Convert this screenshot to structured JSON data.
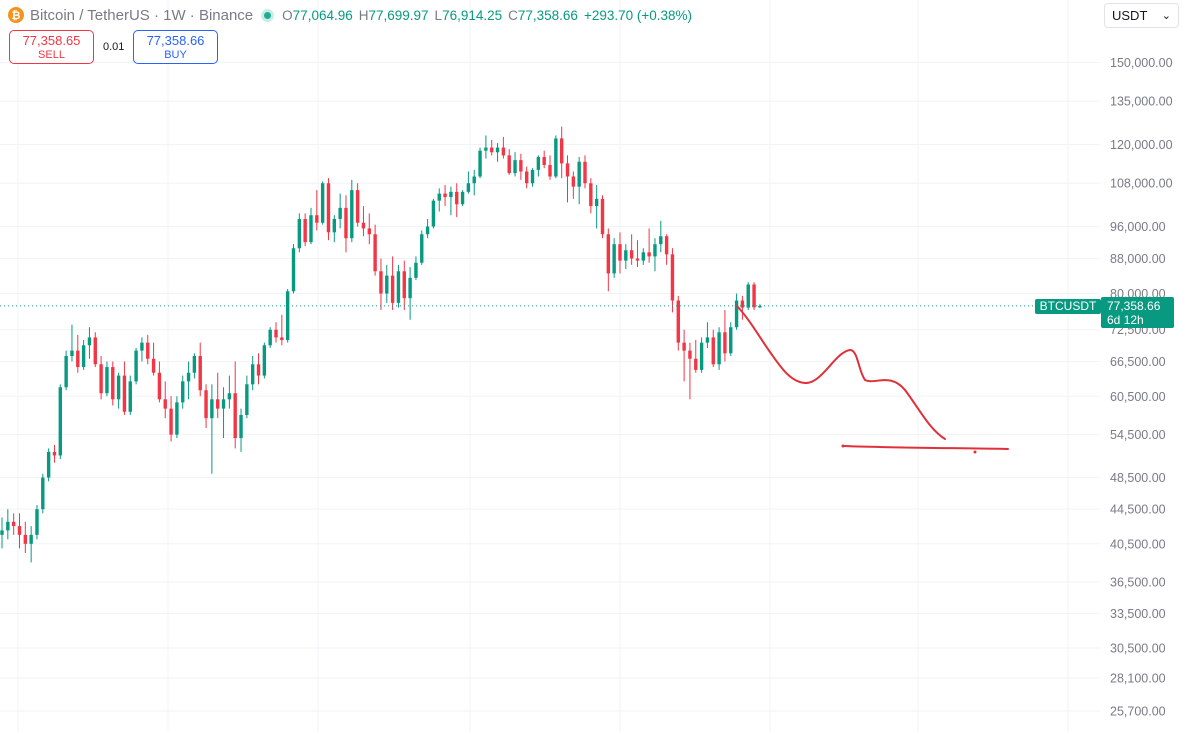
{
  "header": {
    "logo_glyph": "₿",
    "symbol_title": "Bitcoin / TetherUS · 1W · Binance",
    "ohlc": [
      {
        "key": "O",
        "value": "77,064.96"
      },
      {
        "key": "H",
        "value": "77,699.97"
      },
      {
        "key": "L",
        "value": "76,914.25"
      },
      {
        "key": "C",
        "value": "77,358.66"
      }
    ],
    "change": "+293.70 (+0.38%)"
  },
  "trade": {
    "sell_price": "77,358.65",
    "sell_label": "SELL",
    "spread": "0.01",
    "buy_price": "77,358.66",
    "buy_label": "BUY"
  },
  "currency_select": {
    "value": "USDT"
  },
  "price_label": {
    "symbol": "BTCUSDT",
    "price": "77,358.66",
    "countdown": "6d 12h"
  },
  "colors": {
    "up": "#089981",
    "down": "#f23645",
    "grid": "#f0f3fa",
    "axis_text": "#787b86",
    "drawing": "#e0303a"
  },
  "chart_data": {
    "type": "candlestick",
    "interval": "1W",
    "scale": "log",
    "y_ticks": [
      150000,
      135000,
      120000,
      108000,
      96000,
      88000,
      80000,
      72500,
      66500,
      60500,
      54500,
      48500,
      44500,
      40500,
      36500,
      33500,
      30500,
      28100,
      25700
    ],
    "y_tick_labels": [
      "150,000.00",
      "135,000.00",
      "120,000.00",
      "108,000.00",
      "96,000.00",
      "88,000.00",
      "80,000.00",
      "72,500.00",
      "66,500.00",
      "60,500.00",
      "54,500.00",
      "48,500.00",
      "44,500.00",
      "40,500.00",
      "36,500.00",
      "33,500.00",
      "30,500.00",
      "28,100.00",
      "25,700.00"
    ],
    "last_price": 77358.66,
    "candles": [
      [
        41500,
        43500,
        40000,
        42000
      ],
      [
        42000,
        44500,
        41000,
        43000
      ],
      [
        43000,
        44000,
        41500,
        42500
      ],
      [
        42500,
        44000,
        40000,
        41500
      ],
      [
        41500,
        43000,
        39500,
        40500
      ],
      [
        40500,
        42500,
        38500,
        41500
      ],
      [
        41500,
        45000,
        41000,
        44500
      ],
      [
        44500,
        49000,
        44000,
        48500
      ],
      [
        48500,
        52500,
        48000,
        52000
      ],
      [
        52000,
        53000,
        50500,
        51500
      ],
      [
        51500,
        62500,
        51000,
        62000
      ],
      [
        62000,
        68500,
        61500,
        67500
      ],
      [
        67500,
        73500,
        66500,
        68500
      ],
      [
        68500,
        71500,
        64500,
        65500
      ],
      [
        65500,
        70500,
        65000,
        69500
      ],
      [
        69500,
        73000,
        67000,
        71000
      ],
      [
        71000,
        72000,
        65500,
        66000
      ],
      [
        66000,
        67500,
        60000,
        61000
      ],
      [
        61000,
        66500,
        60500,
        65500
      ],
      [
        65500,
        66500,
        59000,
        60000
      ],
      [
        60000,
        64500,
        58500,
        64000
      ],
      [
        64000,
        66500,
        57500,
        58000
      ],
      [
        58000,
        64000,
        57500,
        63000
      ],
      [
        63000,
        69000,
        62500,
        68500
      ],
      [
        68500,
        71000,
        66500,
        70000
      ],
      [
        70000,
        71500,
        66000,
        67000
      ],
      [
        67000,
        70000,
        64000,
        64500
      ],
      [
        64500,
        66500,
        59500,
        60000
      ],
      [
        60000,
        63000,
        57000,
        58500
      ],
      [
        58500,
        60500,
        53500,
        54500
      ],
      [
        54500,
        60500,
        54000,
        59500
      ],
      [
        59500,
        64000,
        58500,
        63000
      ],
      [
        63000,
        66500,
        60000,
        64500
      ],
      [
        64500,
        68000,
        63500,
        67500
      ],
      [
        67500,
        70000,
        60500,
        61500
      ],
      [
        61500,
        62500,
        55500,
        57000
      ],
      [
        57000,
        62500,
        49000,
        60000
      ],
      [
        60000,
        64500,
        57000,
        58500
      ],
      [
        58500,
        62000,
        54000,
        60000
      ],
      [
        60000,
        64000,
        58500,
        61000
      ],
      [
        61000,
        66500,
        52500,
        54000
      ],
      [
        54000,
        58500,
        52000,
        57500
      ],
      [
        57500,
        64000,
        57000,
        62500
      ],
      [
        62500,
        67500,
        61500,
        66000
      ],
      [
        66000,
        68000,
        62500,
        64000
      ],
      [
        64000,
        70000,
        63500,
        69500
      ],
      [
        69500,
        73000,
        69000,
        72500
      ],
      [
        72500,
        74000,
        70000,
        71000
      ],
      [
        71000,
        75500,
        69500,
        70500
      ],
      [
        70500,
        81000,
        70000,
        80500
      ],
      [
        80500,
        91500,
        80000,
        90500
      ],
      [
        90500,
        99500,
        89500,
        98000
      ],
      [
        98000,
        99500,
        91000,
        92000
      ],
      [
        92000,
        101000,
        91500,
        99000
      ],
      [
        99000,
        106000,
        95000,
        97000
      ],
      [
        97000,
        108500,
        96500,
        108000
      ],
      [
        108000,
        109500,
        92500,
        94500
      ],
      [
        94500,
        99000,
        92000,
        98000
      ],
      [
        98000,
        105000,
        95500,
        101000
      ],
      [
        101000,
        104500,
        89500,
        93000
      ],
      [
        93000,
        109000,
        92000,
        106000
      ],
      [
        106000,
        108000,
        96000,
        97000
      ],
      [
        97000,
        101500,
        93500,
        95500
      ],
      [
        95500,
        99500,
        91500,
        94000
      ],
      [
        94000,
        96500,
        84000,
        85000
      ],
      [
        85000,
        88000,
        76500,
        80000
      ],
      [
        80000,
        86500,
        78000,
        84000
      ],
      [
        84000,
        88500,
        76500,
        78000
      ],
      [
        78000,
        86500,
        77000,
        85000
      ],
      [
        85000,
        87500,
        76500,
        79000
      ],
      [
        79000,
        86000,
        74500,
        83500
      ],
      [
        83500,
        88500,
        83000,
        87000
      ],
      [
        87000,
        95000,
        86500,
        94000
      ],
      [
        94000,
        98000,
        93000,
        96000
      ],
      [
        96000,
        103500,
        95500,
        103000
      ],
      [
        103000,
        106500,
        100000,
        105000
      ],
      [
        105000,
        107500,
        101500,
        104000
      ],
      [
        104000,
        107000,
        99000,
        105500
      ],
      [
        105500,
        108000,
        98500,
        102000
      ],
      [
        102000,
        106000,
        101500,
        105500
      ],
      [
        105500,
        111500,
        105000,
        108000
      ],
      [
        108000,
        112000,
        104500,
        110000
      ],
      [
        110000,
        119000,
        109500,
        118000
      ],
      [
        118000,
        123000,
        115500,
        119000
      ],
      [
        119000,
        121500,
        116500,
        117500
      ],
      [
        117500,
        120500,
        114500,
        119000
      ],
      [
        119000,
        122500,
        115500,
        116500
      ],
      [
        116500,
        118500,
        110500,
        111000
      ],
      [
        111000,
        117500,
        110000,
        115000
      ],
      [
        115000,
        117000,
        109000,
        111500
      ],
      [
        111500,
        113000,
        106500,
        108000
      ],
      [
        108000,
        112500,
        107000,
        112000
      ],
      [
        112000,
        116500,
        110000,
        116000
      ],
      [
        116000,
        118000,
        112500,
        113500
      ],
      [
        113500,
        116500,
        109000,
        110000
      ],
      [
        110000,
        123000,
        109500,
        122000
      ],
      [
        122000,
        126000,
        109500,
        114000
      ],
      [
        114000,
        116500,
        102500,
        110000
      ],
      [
        110000,
        111500,
        103500,
        107000
      ],
      [
        107000,
        116000,
        102000,
        114500
      ],
      [
        114500,
        116500,
        106500,
        108000
      ],
      [
        108000,
        109500,
        99500,
        101500
      ],
      [
        101500,
        107500,
        95500,
        103500
      ],
      [
        103500,
        104500,
        93000,
        94000
      ],
      [
        94000,
        95500,
        80500,
        84500
      ],
      [
        84500,
        93000,
        83500,
        91500
      ],
      [
        91500,
        94500,
        84500,
        87500
      ],
      [
        87500,
        91500,
        85500,
        90000
      ],
      [
        90000,
        94000,
        86500,
        88000
      ],
      [
        88000,
        92500,
        86000,
        87500
      ],
      [
        87500,
        90500,
        86500,
        89500
      ],
      [
        89500,
        95500,
        87000,
        88500
      ],
      [
        88500,
        93000,
        85000,
        91500
      ],
      [
        91500,
        97500,
        89500,
        93500
      ],
      [
        93500,
        94000,
        86500,
        89000
      ],
      [
        89000,
        90500,
        76000,
        78500
      ],
      [
        78500,
        79500,
        68500,
        70000
      ],
      [
        70000,
        72500,
        63000,
        68500
      ],
      [
        68500,
        70000,
        60000,
        67000
      ],
      [
        67000,
        70500,
        64500,
        65000
      ],
      [
        65000,
        71000,
        64500,
        70000
      ],
      [
        70000,
        74000,
        69000,
        71000
      ],
      [
        71000,
        72500,
        65500,
        66000
      ],
      [
        66000,
        73000,
        65000,
        72000
      ],
      [
        72000,
        76500,
        66500,
        68000
      ],
      [
        68000,
        74000,
        67500,
        73000
      ],
      [
        73000,
        80000,
        72500,
        78500
      ],
      [
        78500,
        79500,
        74500,
        77000
      ],
      [
        77000,
        82500,
        76500,
        82000
      ],
      [
        82000,
        82500,
        76500,
        77064.96
      ],
      [
        77064.96,
        77699.97,
        76914.25,
        77358.66
      ]
    ],
    "drawings": [
      {
        "type": "freehand",
        "description": "projected path"
      },
      {
        "type": "horizontal_line",
        "level": 52500
      }
    ]
  }
}
